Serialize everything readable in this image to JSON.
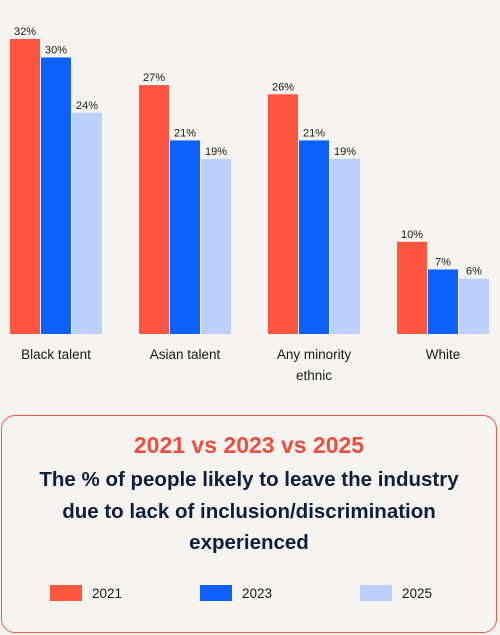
{
  "chart_data": {
    "type": "bar",
    "categories": [
      "Black talent",
      "Asian talent",
      "Any minority ethnic",
      "White"
    ],
    "category_label_lines": [
      [
        "Black talent"
      ],
      [
        "Asian talent"
      ],
      [
        "Any minority",
        "ethnic"
      ],
      [
        "White"
      ]
    ],
    "series": [
      {
        "name": "2021",
        "color": "#fe553e",
        "values": [
          32,
          27,
          26,
          10
        ],
        "labels": [
          "32%",
          "27%",
          "26%",
          "10%"
        ]
      },
      {
        "name": "2023",
        "color": "#0d60fa",
        "values": [
          30,
          21,
          21,
          7
        ],
        "labels": [
          "30%",
          "21%",
          "21%",
          "7%"
        ]
      },
      {
        "name": "2025",
        "color": "#bcd0ff",
        "values": [
          24,
          19,
          19,
          6
        ],
        "labels": [
          "24%",
          "19%",
          "19%",
          "6%"
        ]
      }
    ],
    "ylim": [
      0,
      32
    ],
    "grid": false,
    "legend_position": "bottom"
  },
  "box": {
    "title": "2021 vs 2023 vs 2025",
    "subtitle": "The % of people likely to leave the industry due to lack of inclusion/discrimination experienced"
  },
  "legend": {
    "items": [
      {
        "label": "2021",
        "color": "#fe553e"
      },
      {
        "label": "2023",
        "color": "#0d60fa"
      },
      {
        "label": "2025",
        "color": "#bcd0ff"
      }
    ]
  }
}
